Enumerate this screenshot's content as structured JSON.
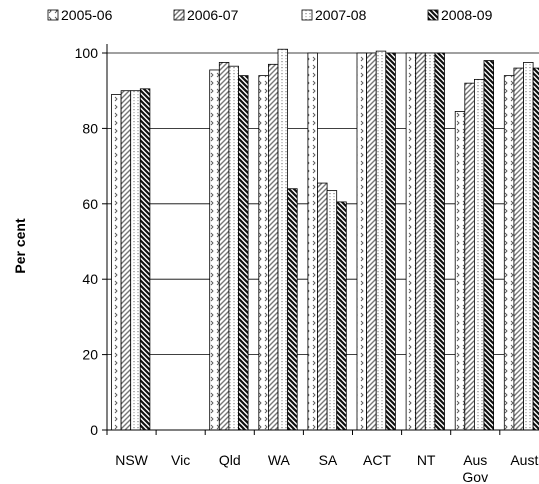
{
  "chart_data": {
    "type": "bar",
    "title": "",
    "xlabel": "",
    "ylabel": "Per cent",
    "ylim": [
      0,
      100
    ],
    "yticks": [
      "0",
      "20",
      "40",
      "60",
      "80",
      "100"
    ],
    "grid": true,
    "legend_position": "top",
    "categories": [
      "NSW",
      "Vic",
      "Qld",
      "WA",
      "SA",
      "ACT",
      "NT",
      "Aus Gov",
      "Aust"
    ],
    "series": [
      {
        "name": "2005-06",
        "pattern": "dots",
        "values": [
          89,
          null,
          95.5,
          94,
          100,
          100,
          100,
          84.5,
          94
        ]
      },
      {
        "name": "2006-07",
        "pattern": "diagonal",
        "values": [
          90,
          null,
          97.5,
          97,
          65.5,
          100,
          100,
          92,
          96
        ]
      },
      {
        "name": "2007-08",
        "pattern": "vertical",
        "values": [
          90,
          null,
          96.5,
          101,
          63.5,
          100.5,
          100,
          93,
          97.5
        ]
      },
      {
        "name": "2008-09",
        "pattern": "hatch",
        "values": [
          90.5,
          null,
          94,
          64,
          60.5,
          100,
          100,
          98,
          96
        ]
      }
    ]
  }
}
